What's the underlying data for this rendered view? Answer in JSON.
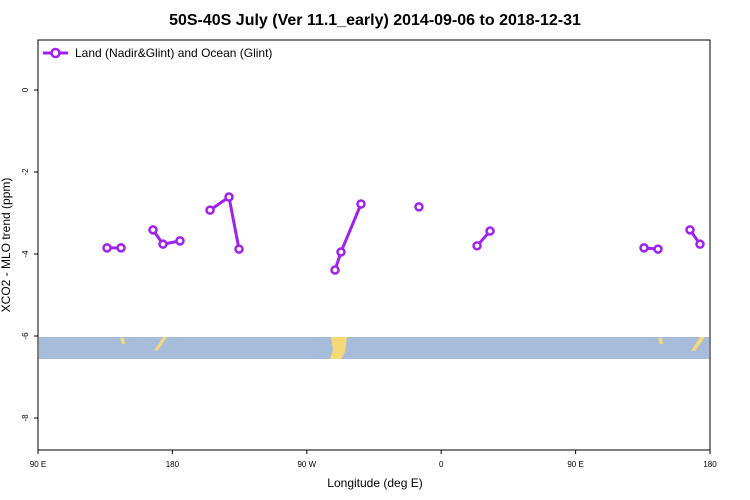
{
  "chart_data": {
    "type": "line",
    "title": "50S-40S July (Ver 11.1_early)   2014-09-06 to 2018-12-31",
    "x_label": "Longitude (deg E)",
    "y_label": "XCO2 - MLO trend (ppm)",
    "x": [
      136.2,
      145.6,
      null,
      167.0,
      173.7,
      185.1,
      null,
      205.2,
      217.9,
      224.6,
      null,
      288.9,
      292.9,
      306.3,
      null,
      345.1,
      null,
      384.0,
      392.7,
      null,
      495.8,
      505.2,
      null,
      526.6,
      533.3
    ],
    "series": [
      {
        "name": "Land (Nadir&Glint) and Ocean (Glint)",
        "color": "#a020f0",
        "values": [
          -3.85,
          -3.85,
          null,
          -3.41,
          -3.76,
          -3.68,
          null,
          -2.93,
          -2.61,
          -3.88,
          null,
          -4.39,
          -3.95,
          -2.78,
          null,
          -2.85,
          null,
          -3.8,
          -3.44,
          null,
          -3.85,
          -3.88,
          null,
          -3.41,
          -3.76
        ]
      }
    ],
    "xlim": [
      90,
      540
    ],
    "xticks": [
      {
        "value": 90,
        "label": "90 E"
      },
      {
        "value": 180,
        "label": "180"
      },
      {
        "value": 270,
        "label": "90 W"
      },
      {
        "value": 360,
        "label": "0"
      },
      {
        "value": 450,
        "label": "90 E"
      },
      {
        "value": 540,
        "label": "180"
      }
    ],
    "ylim": [
      -8.78,
      1.22
    ],
    "yticks": [
      0,
      -2,
      -4,
      -6,
      -8
    ],
    "legend": "top-left"
  }
}
